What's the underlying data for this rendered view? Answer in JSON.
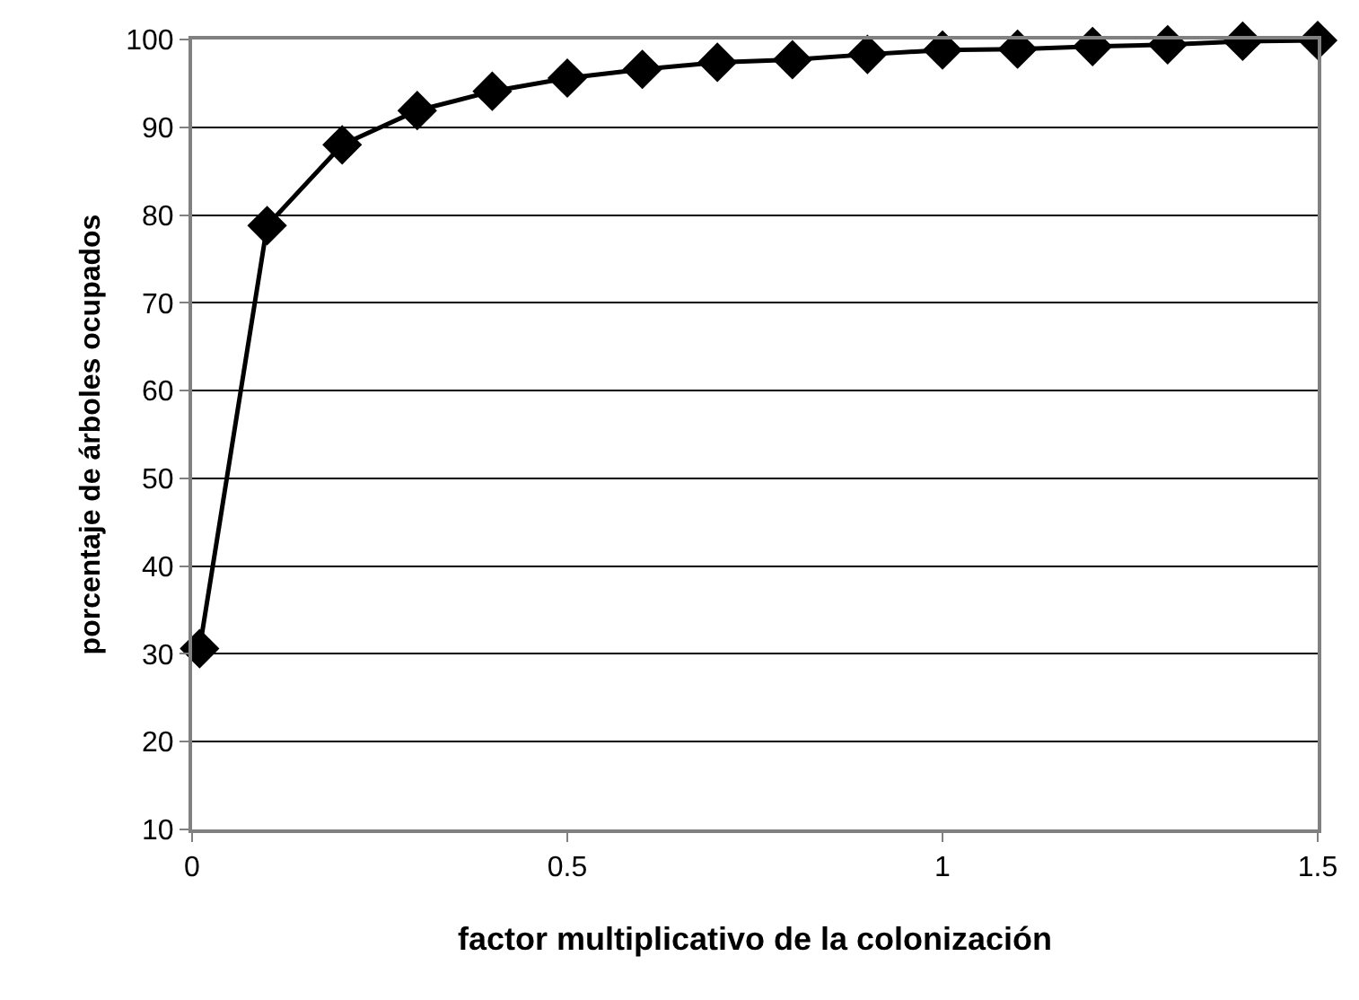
{
  "chart_data": {
    "type": "line",
    "xlabel": "factor multiplicativo de la colonización",
    "ylabel": "porcentaje de árboles ocupados",
    "x": [
      0.01,
      0.1,
      0.2,
      0.3,
      0.4,
      0.5,
      0.6,
      0.7,
      0.8,
      0.9,
      1.0,
      1.1,
      1.2,
      1.3,
      1.4,
      1.5
    ],
    "series": [
      {
        "color": "#000000",
        "values": [
          30.6,
          78.8,
          88.0,
          91.9,
          94.1,
          95.6,
          96.6,
          97.4,
          97.7,
          98.3,
          98.8,
          98.9,
          99.2,
          99.4,
          99.8,
          99.9
        ]
      }
    ],
    "xlim": [
      0,
      1.5
    ],
    "xticks": [
      0,
      0.5,
      1,
      1.5
    ],
    "ylim": [
      10,
      100
    ],
    "yticks": [
      10,
      20,
      30,
      40,
      50,
      60,
      70,
      80,
      90,
      100
    ],
    "grid": "y",
    "legend": false,
    "marker": "diamond",
    "line_style": "solid"
  }
}
